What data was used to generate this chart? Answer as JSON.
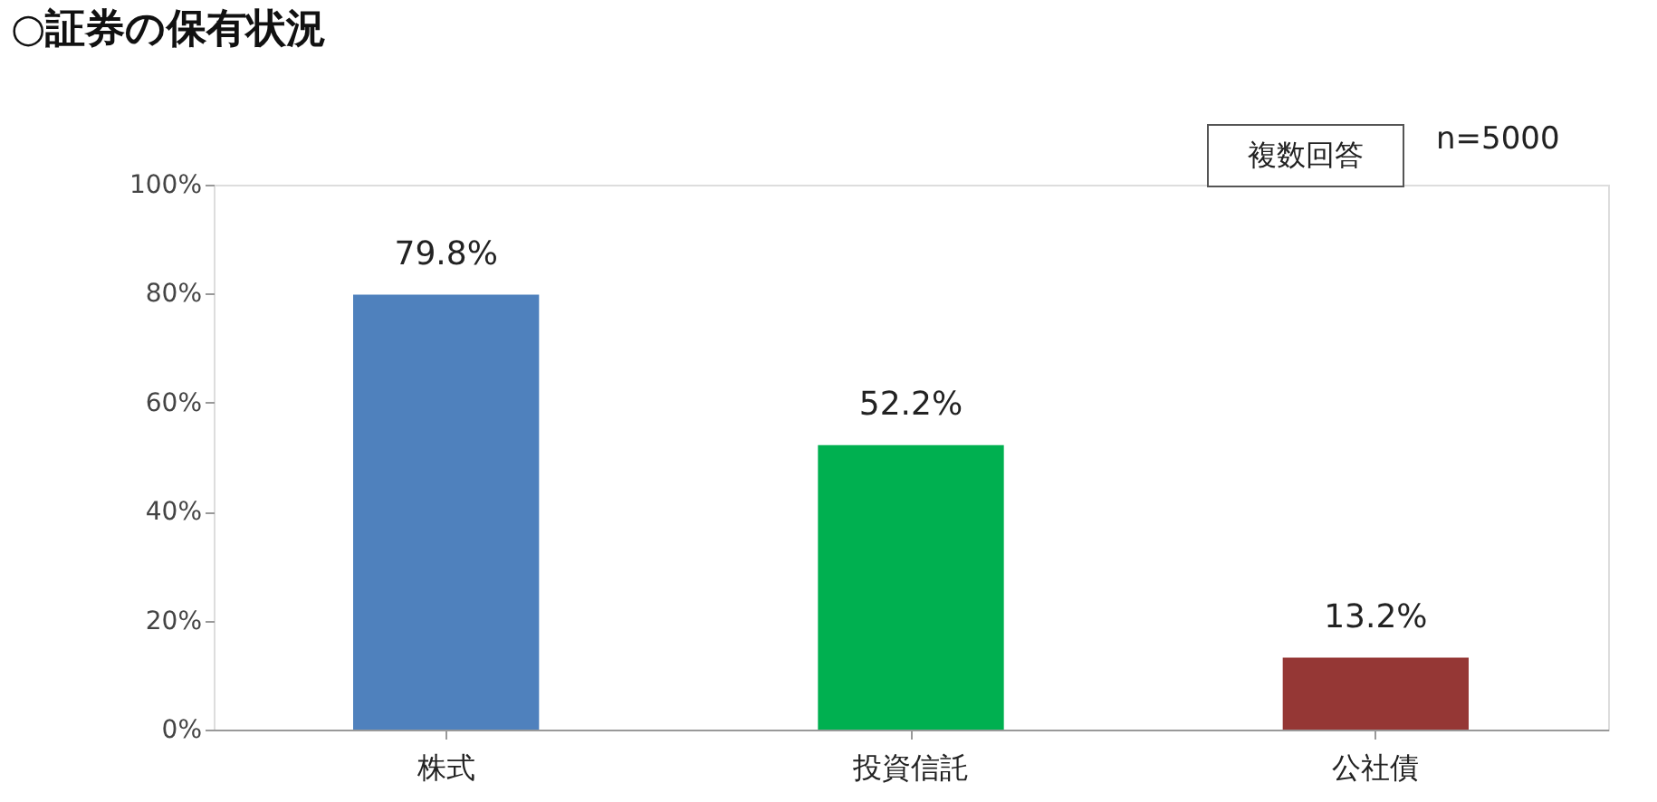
{
  "chart_data": {
    "type": "bar",
    "title": "○証券の保有状況",
    "categories": [
      "株式",
      "投資信託",
      "公社債"
    ],
    "values": [
      79.8,
      52.2,
      13.2
    ],
    "colors": [
      "#4f81bd",
      "#00b050",
      "#953735"
    ],
    "value_labels": [
      "79.8%",
      "52.2%",
      "13.2%"
    ],
    "ylim": [
      0,
      100
    ],
    "yticks": [
      {
        "value": 0,
        "label": "0%"
      },
      {
        "value": 20,
        "label": "20%"
      },
      {
        "value": 40,
        "label": "40%"
      },
      {
        "value": 60,
        "label": "60%"
      },
      {
        "value": 80,
        "label": "80%"
      },
      {
        "value": 100,
        "label": "100%"
      }
    ],
    "annotations": [
      "複数回答",
      "n=5000"
    ],
    "grid": false
  }
}
